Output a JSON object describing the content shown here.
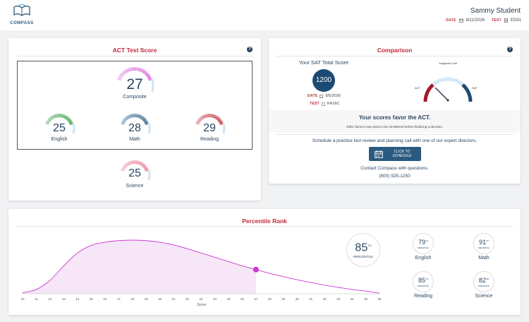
{
  "header": {
    "logo_text": "COMPASS",
    "student_name": "Sammy Student",
    "date_label": "DATE",
    "date_value": "8/11/2026",
    "test_label": "TEST",
    "test_value": "ED91"
  },
  "act": {
    "title": "ACT Test Score",
    "help": "?",
    "composite": {
      "value": "27",
      "label": "Composite",
      "color": "#c93bd1"
    },
    "english": {
      "value": "25",
      "label": "English",
      "color": "#2e9e3e"
    },
    "math": {
      "value": "28",
      "label": "Math",
      "color": "#2a5a80"
    },
    "reading": {
      "value": "29",
      "label": "Reading",
      "color": "#c0283a"
    },
    "science": {
      "value": "25",
      "label": "Science",
      "color": "#e87a8e"
    }
  },
  "comparison": {
    "title": "Comparison",
    "help": "?",
    "sat_heading": "Your SAT Total Score",
    "sat_score": "1200",
    "date_label": "DATE",
    "date_value": "8/5/2026",
    "test_label": "TEST",
    "test_value": "KA16C",
    "gauge_top": "Judgment Call",
    "gauge_left": "ACT",
    "gauge_right": "SAT",
    "favor_text": "Your scores favor the ACT.",
    "favor_sub": "Other factors may need to be considered before finalizing a decision.",
    "schedule_text": "Schedule a practice test review and planning call with one of our expert directors.",
    "button_line1": "CLICK TO",
    "button_line2": "SCHEDULE",
    "contact_text": "Contact Compass with questions.",
    "phone": "(800) 925-1250"
  },
  "percentile": {
    "title": "Percentile Rank",
    "x_label": "Score",
    "main": {
      "value": "85",
      "sup": "TH",
      "label": "PERCENTILE"
    },
    "items": [
      {
        "name": "English",
        "value": "79",
        "sup": "TH",
        "sub": "PERCENTILE"
      },
      {
        "name": "Math",
        "value": "91",
        "sup": "ST",
        "sub": "PERCENTILE"
      },
      {
        "name": "Reading",
        "value": "85",
        "sup": "TH",
        "sub": "PERCENTILE"
      },
      {
        "name": "Science",
        "value": "82",
        "sup": "ND",
        "sub": "PERCENTILE"
      }
    ]
  },
  "chart_data": {
    "type": "area",
    "x": [
      10,
      11,
      12,
      13,
      14,
      15,
      16,
      17,
      18,
      19,
      20,
      21,
      22,
      23,
      24,
      25,
      26,
      27,
      28,
      29,
      30,
      31,
      32,
      33,
      34,
      35,
      36
    ],
    "xlabel": "Score",
    "ylabel": "",
    "y": [
      0.02,
      0.08,
      0.25,
      0.52,
      0.76,
      0.9,
      0.96,
      0.99,
      1.0,
      0.99,
      0.96,
      0.91,
      0.84,
      0.76,
      0.68,
      0.6,
      0.52,
      0.45,
      0.38,
      0.32,
      0.26,
      0.21,
      0.16,
      0.12,
      0.08,
      0.05,
      0.01
    ],
    "marker_x": 27,
    "shaded_to": 27,
    "color": "#c93bd1",
    "fill": "#f6e6f8"
  }
}
